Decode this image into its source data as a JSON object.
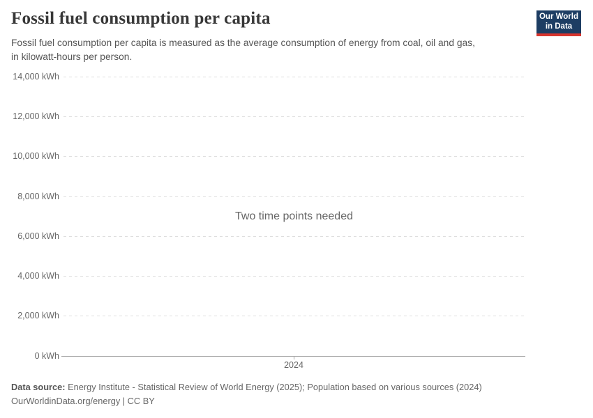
{
  "header": {
    "title": "Fossil fuel consumption per capita",
    "subtitle_line1": "Fossil fuel consumption per capita is measured as the average consumption of energy from coal, oil and gas,",
    "subtitle_line2": "in kilowatt-hours per person.",
    "logo": {
      "line1": "Our World",
      "line2": "in Data"
    }
  },
  "chart_data": {
    "type": "line",
    "title": "Fossil fuel consumption per capita",
    "series": [],
    "message": "Two time points needed",
    "yticks": [
      {
        "value": 14000,
        "label": "14,000 kWh"
      },
      {
        "value": 12000,
        "label": "12,000 kWh"
      },
      {
        "value": 10000,
        "label": "10,000 kWh"
      },
      {
        "value": 8000,
        "label": "8,000 kWh"
      },
      {
        "value": 6000,
        "label": "6,000 kWh"
      },
      {
        "value": 4000,
        "label": "4,000 kWh"
      },
      {
        "value": 2000,
        "label": "2,000 kWh"
      },
      {
        "value": 0,
        "label": "0 kWh"
      }
    ],
    "xticks": [
      {
        "value": 2024,
        "label": "2024"
      }
    ],
    "ylim": [
      0,
      14000
    ],
    "grid": "horizontal-dashed",
    "legend": "none"
  },
  "footer": {
    "data_source_label": "Data source:",
    "data_source_text": " Energy Institute - Statistical Review of World Energy (2025); Population based on various sources (2024)",
    "attribution": "OurWorldinData.org/energy | CC BY"
  },
  "colors": {
    "logo_background": "#1d3d63",
    "logo_stripe": "#d8352e",
    "gridline": "#dedede",
    "axis_line": "#a7a7a7",
    "title_text": "#383838",
    "muted_text": "#666666"
  }
}
